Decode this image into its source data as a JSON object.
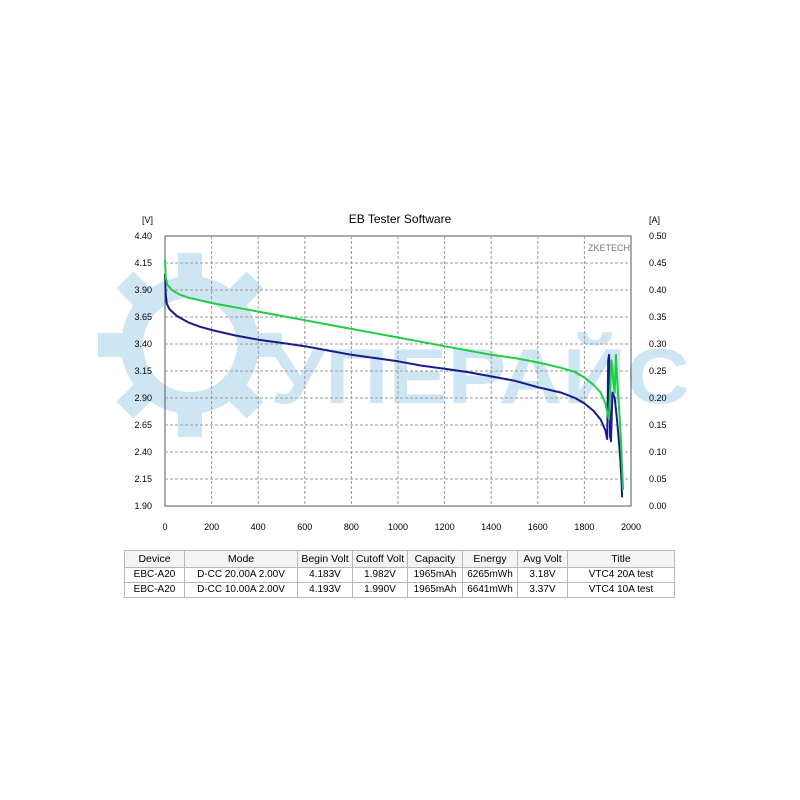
{
  "chart_data": {
    "type": "line",
    "title": "EB Tester Software",
    "left_unit": "[V]",
    "right_unit": "[A]",
    "brand": "ZKETECH",
    "watermark": "УПЕРАЙС",
    "x_range": [
      0,
      2000
    ],
    "x_ticks": [
      "0",
      "200",
      "400",
      "600",
      "800",
      "1000",
      "1200",
      "1400",
      "1600",
      "1800",
      "2000"
    ],
    "y_left_range": [
      1.9,
      4.4
    ],
    "y_left_ticks": [
      "1.90",
      "2.15",
      "2.40",
      "2.65",
      "2.90",
      "3.15",
      "3.40",
      "3.65",
      "3.90",
      "4.15",
      "4.40"
    ],
    "y_right_range": [
      0.0,
      0.5
    ],
    "y_right_ticks": [
      "0.00",
      "0.05",
      "0.10",
      "0.15",
      "0.20",
      "0.25",
      "0.30",
      "0.35",
      "0.40",
      "0.45",
      "0.50"
    ],
    "grid": true,
    "series": [
      {
        "color": "#1a1a8c",
        "points": [
          [
            0,
            4.05
          ],
          [
            3,
            3.86
          ],
          [
            8,
            3.77
          ],
          [
            20,
            3.72
          ],
          [
            50,
            3.66
          ],
          [
            100,
            3.6
          ],
          [
            150,
            3.56
          ],
          [
            200,
            3.53
          ],
          [
            300,
            3.48
          ],
          [
            400,
            3.44
          ],
          [
            500,
            3.41
          ],
          [
            600,
            3.38
          ],
          [
            700,
            3.34
          ],
          [
            800,
            3.3
          ],
          [
            900,
            3.27
          ],
          [
            1000,
            3.24
          ],
          [
            1100,
            3.2
          ],
          [
            1200,
            3.17
          ],
          [
            1300,
            3.14
          ],
          [
            1400,
            3.1
          ],
          [
            1500,
            3.06
          ],
          [
            1600,
            3.0
          ],
          [
            1700,
            2.95
          ],
          [
            1760,
            2.9
          ],
          [
            1800,
            2.85
          ],
          [
            1840,
            2.78
          ],
          [
            1870,
            2.7
          ],
          [
            1890,
            2.6
          ],
          [
            1898,
            2.52
          ],
          [
            1902,
            3.25
          ],
          [
            1906,
            3.3
          ],
          [
            1910,
            2.55
          ],
          [
            1914,
            2.5
          ],
          [
            1920,
            2.95
          ],
          [
            1930,
            2.9
          ],
          [
            1940,
            2.7
          ],
          [
            1948,
            2.5
          ],
          [
            1955,
            2.3
          ],
          [
            1960,
            2.1
          ],
          [
            1962,
            1.98
          ]
        ]
      },
      {
        "color": "#22cc44",
        "points": [
          [
            0,
            4.18
          ],
          [
            3,
            4.02
          ],
          [
            10,
            3.95
          ],
          [
            30,
            3.9
          ],
          [
            60,
            3.86
          ],
          [
            100,
            3.83
          ],
          [
            200,
            3.78
          ],
          [
            300,
            3.74
          ],
          [
            400,
            3.7
          ],
          [
            500,
            3.66
          ],
          [
            600,
            3.62
          ],
          [
            700,
            3.58
          ],
          [
            800,
            3.54
          ],
          [
            900,
            3.5
          ],
          [
            1000,
            3.46
          ],
          [
            1100,
            3.42
          ],
          [
            1200,
            3.38
          ],
          [
            1300,
            3.34
          ],
          [
            1400,
            3.3
          ],
          [
            1500,
            3.27
          ],
          [
            1600,
            3.23
          ],
          [
            1700,
            3.18
          ],
          [
            1760,
            3.14
          ],
          [
            1800,
            3.09
          ],
          [
            1840,
            3.02
          ],
          [
            1870,
            2.95
          ],
          [
            1890,
            2.85
          ],
          [
            1905,
            2.7
          ],
          [
            1912,
            3.05
          ],
          [
            1916,
            3.25
          ],
          [
            1920,
            3.2
          ],
          [
            1924,
            3.05
          ],
          [
            1930,
            2.95
          ],
          [
            1935,
            3.3
          ],
          [
            1940,
            3.1
          ],
          [
            1946,
            2.9
          ],
          [
            1952,
            2.7
          ],
          [
            1957,
            2.5
          ],
          [
            1961,
            2.3
          ],
          [
            1964,
            2.15
          ],
          [
            1966,
            2.05
          ]
        ]
      }
    ]
  },
  "table": {
    "headers": [
      "Device",
      "Mode",
      "Begin Volt",
      "Cutoff Volt",
      "Capacity",
      "Energy",
      "Avg Volt",
      "Title"
    ],
    "rows": [
      [
        "EBC-A20",
        "D-CC  20.00A  2.00V",
        "4.183V",
        "1.982V",
        "1965mAh",
        "6265mWh",
        "3.18V",
        "VTC4 20A test"
      ],
      [
        "EBC-A20",
        "D-CC  10.00A  2.00V",
        "4.193V",
        "1.990V",
        "1965mAh",
        "6641mWh",
        "3.37V",
        "VTC4 10A test"
      ]
    ]
  },
  "colors": {
    "series_1": "#1a1a8c",
    "series_2": "#22cc44",
    "watermark": "#9fcde8",
    "grid": "#9a9a9a"
  }
}
